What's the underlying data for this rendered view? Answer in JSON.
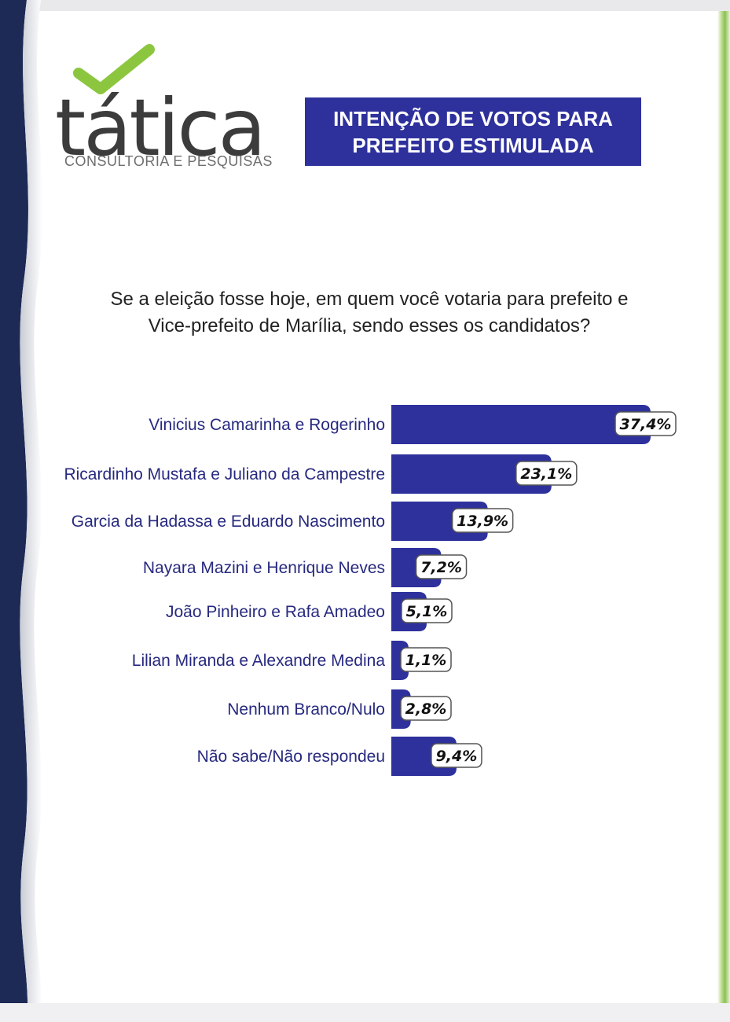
{
  "header": {
    "logo_word": "tática",
    "logo_subtitle": "CONSULTORIA E PESQUISAS",
    "title_line1": "INTENÇÃO DE VOTOS PARA",
    "title_line2": "PREFEITO ESTIMULADA"
  },
  "question": {
    "line1": "Se a eleição fosse hoje, em quem você votaria para prefeito e",
    "line2": "Vice-prefeito de Marília, sendo esses os candidatos?"
  },
  "colors": {
    "bar": "#2e319c",
    "accent_green": "#8cc63f",
    "navy_band": "#1d2a55"
  },
  "chart_data": {
    "type": "bar",
    "orientation": "horizontal",
    "categories": [
      "Vinicius Camarinha e Rogerinho",
      "Ricardinho Mustafa e Juliano da Campestre",
      "Garcia da Hadassa e Eduardo Nascimento",
      "Nayara Mazini e Henrique Neves",
      "João Pinheiro e Rafa Amadeo",
      "Lilian Miranda e Alexandre Medina",
      "Nenhum Branco/Nulo",
      "Não sabe/Não respondeu"
    ],
    "values": [
      37.4,
      23.1,
      13.9,
      7.2,
      5.1,
      1.1,
      2.8,
      9.4
    ],
    "value_labels": [
      "37,4%",
      "23,1%",
      "13,9%",
      "7,2%",
      "5,1%",
      "1,1%",
      "2,8%",
      "9,4%"
    ],
    "grid": false,
    "legend": "none"
  }
}
